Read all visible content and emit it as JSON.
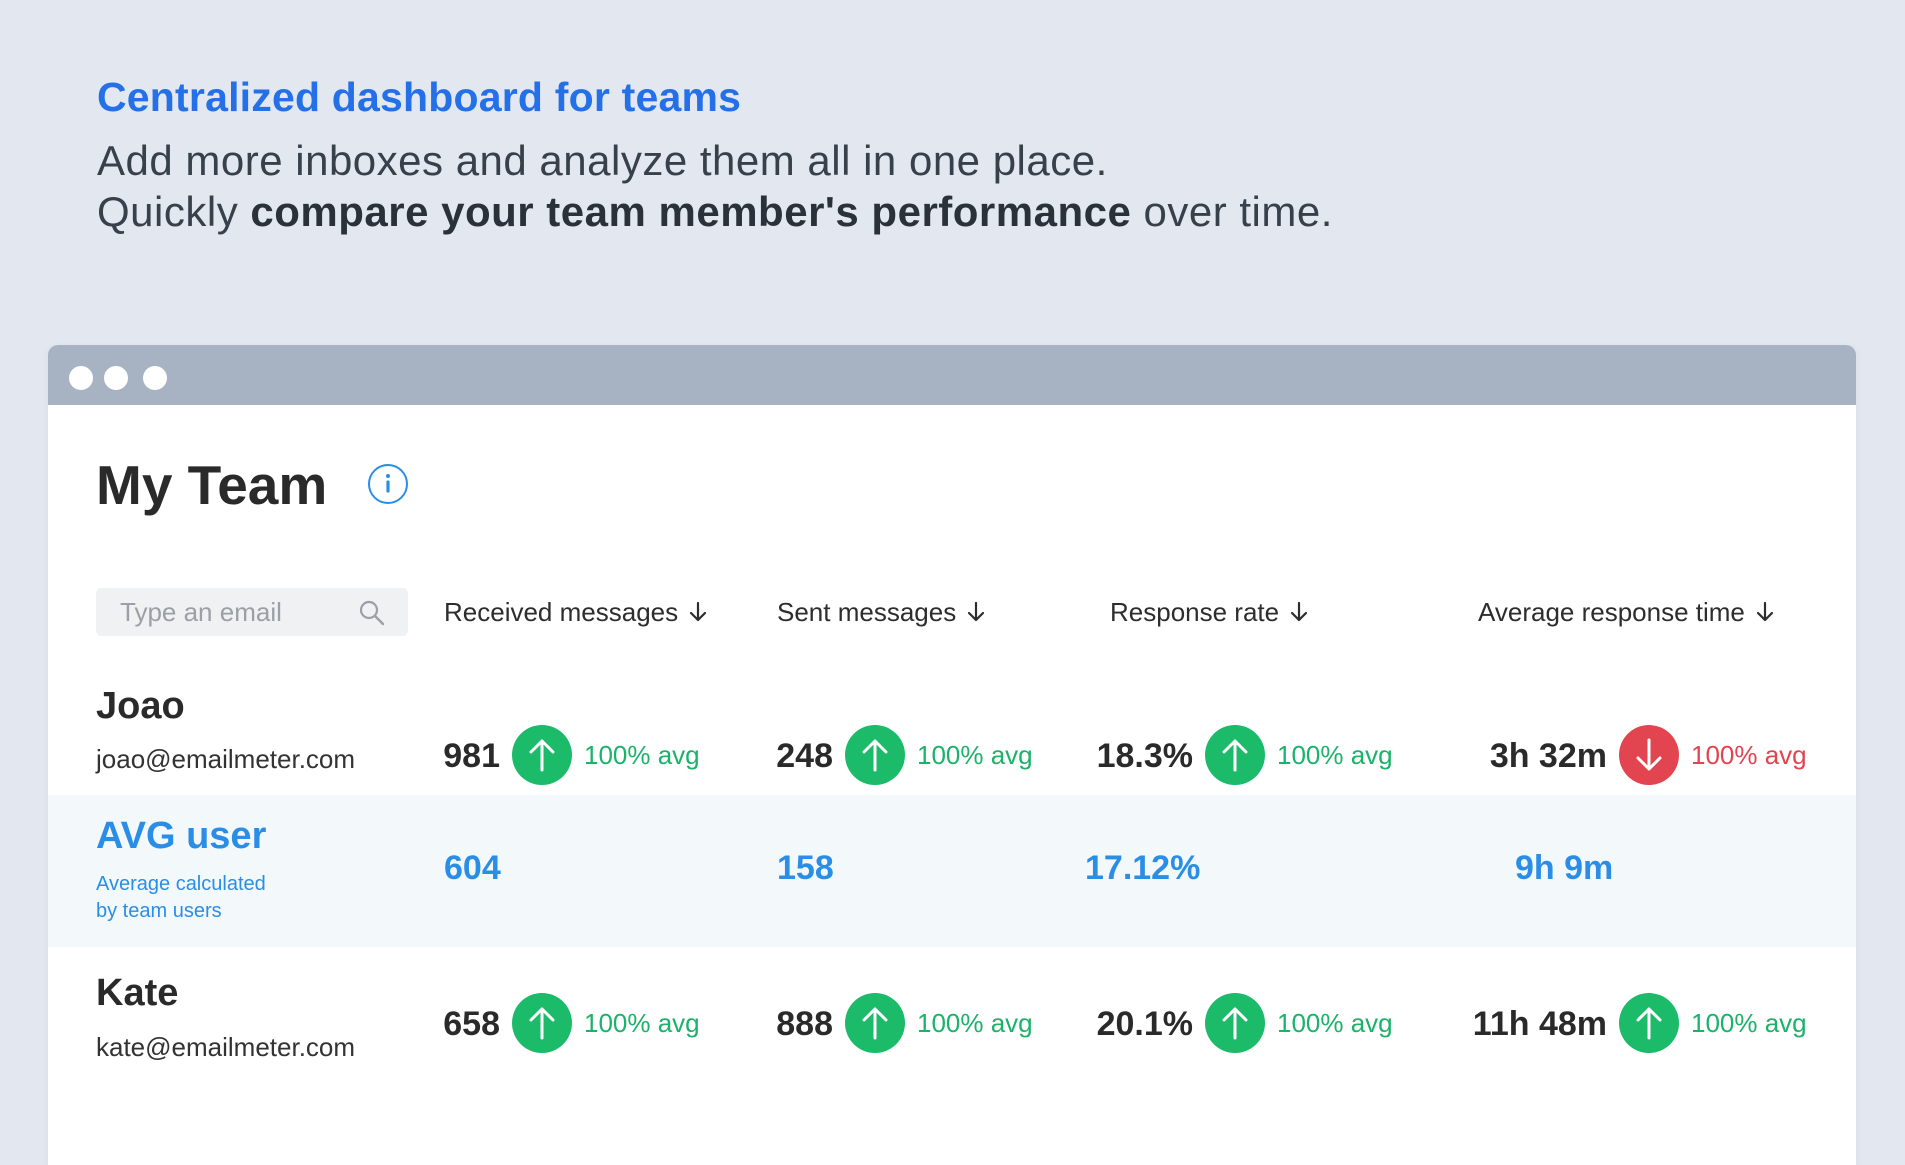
{
  "hero": {
    "title": "Centralized dashboard for teams",
    "line1": "Add more inboxes and analyze them all in one place.",
    "line2_start": "Quickly ",
    "line2_bold": "compare your team member's performance",
    "line2_end": " over time."
  },
  "panel": {
    "title": "My Team",
    "info_icon": "info-icon",
    "search": {
      "placeholder": "Type an email",
      "value": ""
    },
    "columns": [
      "Received messages",
      "Sent messages",
      "Response rate",
      "Average response time"
    ]
  },
  "rows": [
    {
      "name": "Joao",
      "email": "joao@emailmeter.com",
      "metrics": [
        {
          "value": "981",
          "trend": "up",
          "avg": "100% avg"
        },
        {
          "value": "248",
          "trend": "up",
          "avg": "100% avg"
        },
        {
          "value": "18.3%",
          "trend": "up",
          "avg": "100% avg"
        },
        {
          "value": "3h 32m",
          "trend": "down",
          "avg": "100% avg"
        }
      ]
    },
    {
      "name": "AVG user",
      "sub1": "Average calculated",
      "sub2": "by team users",
      "metrics": [
        {
          "value": "604"
        },
        {
          "value": "158"
        },
        {
          "value": "17.12%"
        },
        {
          "value": "9h 9m"
        }
      ]
    },
    {
      "name": "Kate",
      "email": "kate@emailmeter.com",
      "metrics": [
        {
          "value": "658",
          "trend": "up",
          "avg": "100% avg"
        },
        {
          "value": "888",
          "trend": "up",
          "avg": "100% avg"
        },
        {
          "value": "20.1%",
          "trend": "up",
          "avg": "100% avg"
        },
        {
          "value": "11h 48m",
          "trend": "up",
          "avg": "100% avg"
        }
      ]
    }
  ],
  "colors": {
    "accent": "#2a8ee6",
    "up": "#1bbb6a",
    "down": "#e2454f",
    "hero_title": "#2370e8"
  }
}
